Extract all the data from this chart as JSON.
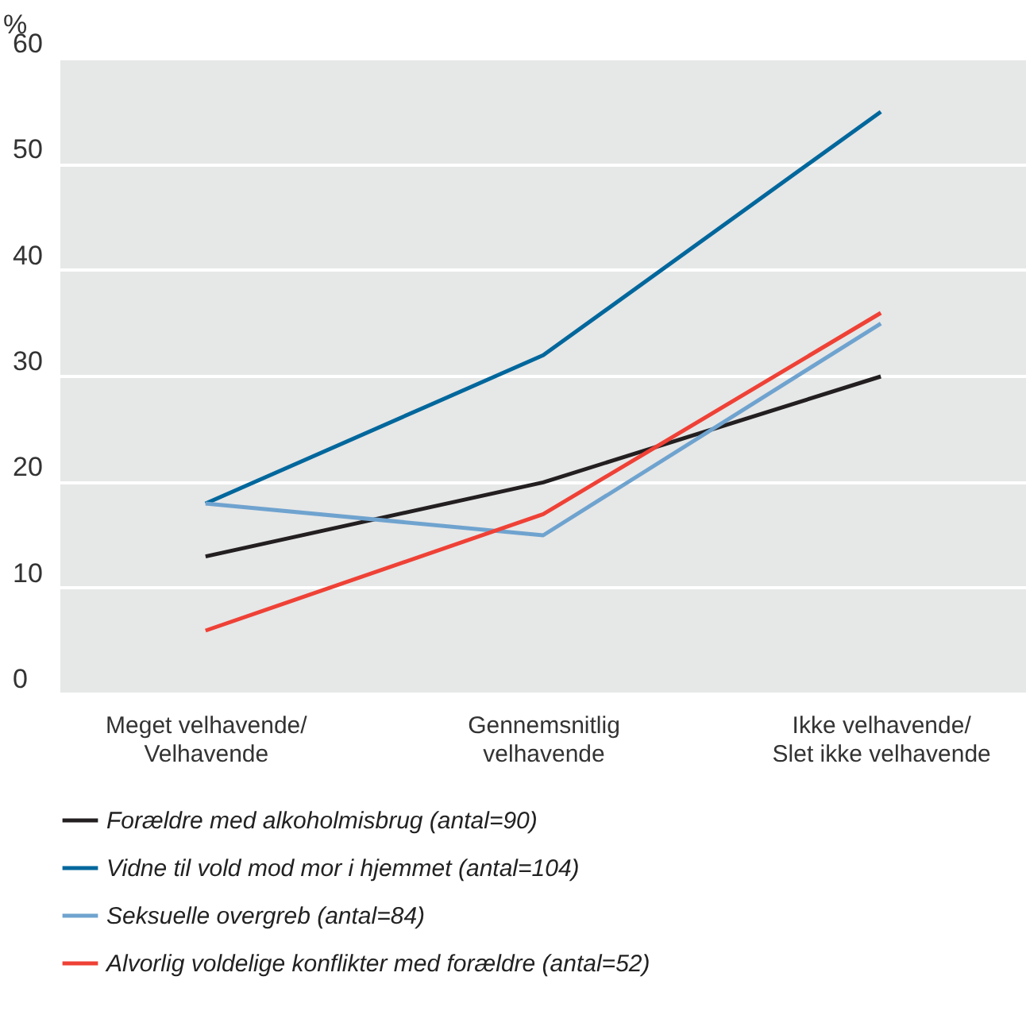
{
  "chart_data": {
    "type": "line",
    "ylabel": "%",
    "categories": [
      "Meget velhavende/\nVelhavende",
      "Gennemsnitlig\nvelhavende",
      "Ikke velhavende/\nSlet ikke velhavende"
    ],
    "series": [
      {
        "name": "Forældre med alkoholmisbrug (antal=90)",
        "color": "#231f20",
        "values": [
          13,
          20,
          30
        ]
      },
      {
        "name": "Vidne til vold mod mor i hjemmet (antal=104)",
        "color": "#00679c",
        "values": [
          18,
          32,
          55
        ]
      },
      {
        "name": "Seksuelle overgreb (antal=84)",
        "color": "#6fa3cf",
        "values": [
          18,
          15,
          35
        ]
      },
      {
        "name": "Alvorlig voldelige konflikter med forældre (antal=52)",
        "color": "#ef4136",
        "values": [
          6,
          17,
          36
        ]
      }
    ],
    "ylim": [
      0,
      60
    ],
    "yticks": [
      0,
      10,
      20,
      30,
      40,
      50,
      60
    ],
    "grid": "y",
    "legend": "bottom",
    "marker": "none",
    "line_style": "solid"
  }
}
